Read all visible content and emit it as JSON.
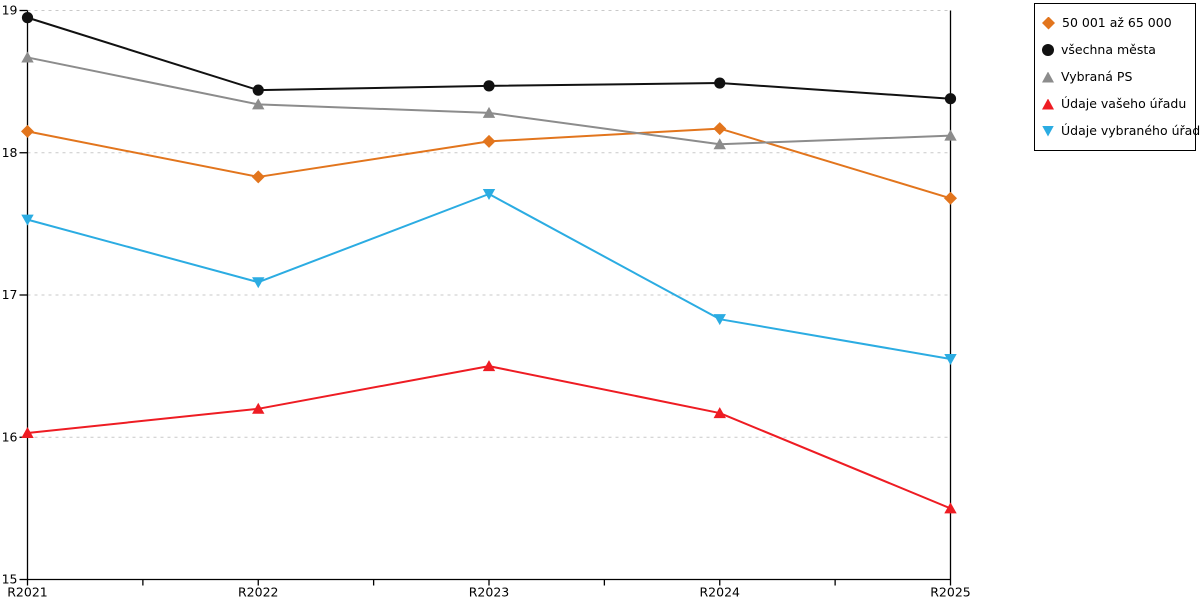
{
  "chart_data": {
    "type": "line",
    "title": "",
    "xlabel": "",
    "ylabel": "",
    "x": [
      "R2021",
      "R2022",
      "R2023",
      "R2024",
      "R2025"
    ],
    "ylim": [
      15,
      19
    ],
    "yticks": [
      15,
      16,
      17,
      18,
      19
    ],
    "grid": "horizontal-dashed",
    "legend_position": "top-right-outside",
    "series": [
      {
        "name": "50 001 až 65 000",
        "marker": "diamond",
        "color": "#E2751D",
        "values": [
          18.15,
          17.83,
          18.08,
          18.17,
          17.68
        ]
      },
      {
        "name": "všechna města",
        "marker": "circle",
        "color": "#111111",
        "values": [
          18.95,
          18.44,
          18.47,
          18.49,
          18.38
        ]
      },
      {
        "name": "Vybraná PS",
        "marker": "triangle-up",
        "color": "#8C8C8C",
        "values": [
          18.67,
          18.34,
          18.28,
          18.06,
          18.12
        ]
      },
      {
        "name": "Údaje vašeho úřadu",
        "marker": "triangle-up",
        "color": "#EE1C23",
        "values": [
          16.03,
          16.2,
          16.5,
          16.17,
          15.5
        ]
      },
      {
        "name": "Údaje vybraného úřadu",
        "marker": "triangle-down",
        "color": "#2BACE2",
        "values": [
          17.53,
          17.09,
          17.71,
          16.83,
          16.55
        ]
      }
    ]
  },
  "axis": {
    "x_tick_labels": [
      "R2021",
      "R2022",
      "R2023",
      "R2024",
      "R2025"
    ],
    "y_tick_labels": [
      "15",
      "16",
      "17",
      "18",
      "19"
    ]
  },
  "colors": {
    "background": "#FFFFFF",
    "axis": "#000000",
    "grid": "#C9C9C9",
    "legend_border": "#000000",
    "tick_text": "#000000"
  }
}
